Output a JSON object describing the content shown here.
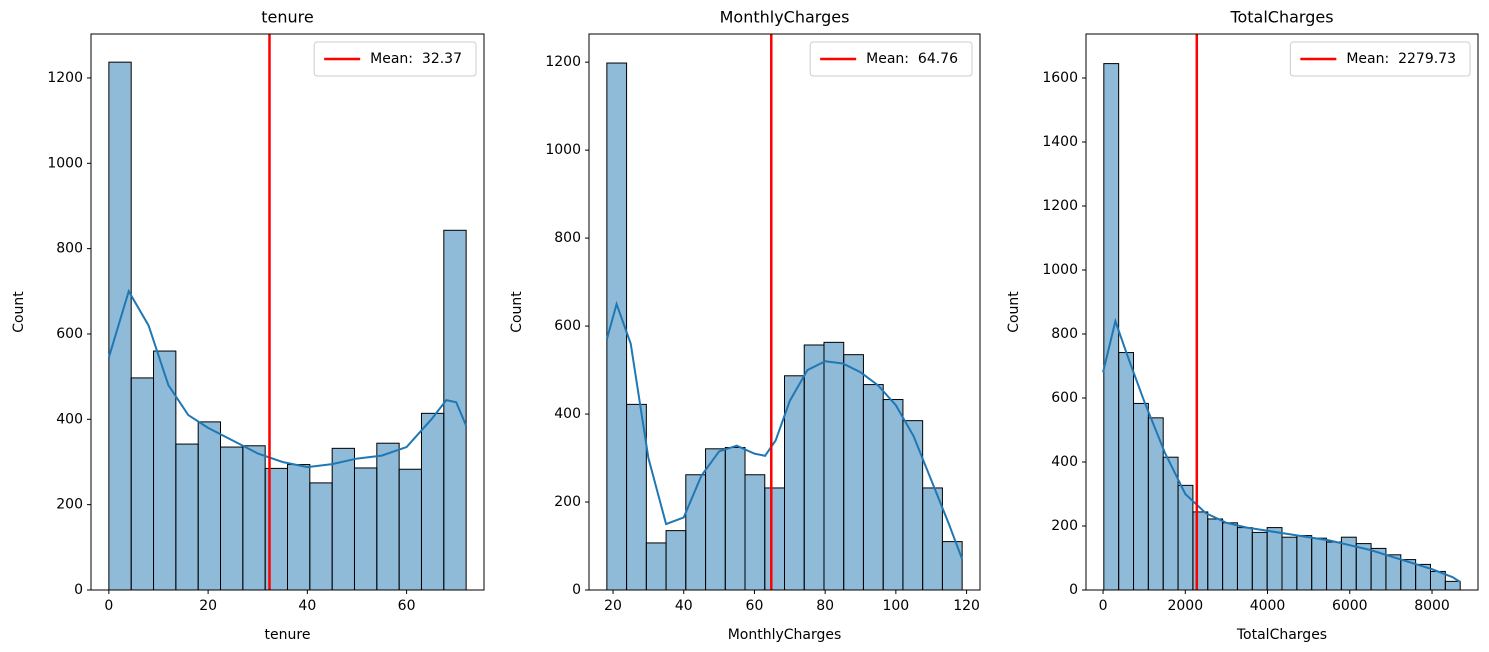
{
  "chart_data": [
    {
      "type": "histogram",
      "title": "tenure",
      "xlabel": "tenure",
      "ylabel": "Count",
      "bins": [
        0,
        4.5,
        9,
        13.5,
        18,
        22.5,
        27,
        31.5,
        36,
        40.5,
        45,
        49.5,
        54,
        58.5,
        63,
        67.5,
        72
      ],
      "values": [
        1237,
        497,
        560,
        342,
        394,
        335,
        338,
        285,
        294,
        251,
        332,
        286,
        344,
        283,
        414,
        843
      ],
      "color": "#1f77b4",
      "kde_x": [
        0,
        4,
        8,
        12,
        16,
        20,
        25,
        30,
        35,
        40,
        45,
        50,
        55,
        60,
        65,
        68,
        70,
        72
      ],
      "kde_y": [
        545,
        700,
        620,
        480,
        410,
        380,
        350,
        320,
        300,
        288,
        295,
        308,
        315,
        335,
        400,
        445,
        440,
        385
      ],
      "mean_line": {
        "name": "Mean:  32.37",
        "value": 32.37,
        "color": "#ff0000"
      },
      "legend": "upper right",
      "xlim": [
        -3.6,
        75.6
      ],
      "ylim": [
        0,
        1303
      ],
      "xticks": [
        0,
        20,
        40,
        60
      ],
      "yticks": [
        0,
        200,
        400,
        600,
        800,
        1000,
        1200
      ]
    },
    {
      "type": "histogram",
      "title": "MonthlyCharges",
      "xlabel": "MonthlyCharges",
      "ylabel": "Count",
      "bins": [
        18.25,
        23.83,
        29.42,
        35,
        40.58,
        46.17,
        51.75,
        57.33,
        62.92,
        68.5,
        74.08,
        79.67,
        85.25,
        90.83,
        96.42,
        102,
        107.58,
        113.17,
        118.75
      ],
      "values": [
        1198,
        422,
        107,
        135,
        262,
        321,
        324,
        262,
        232,
        487,
        557,
        563,
        535,
        467,
        433,
        385,
        232,
        110
      ],
      "color": "#1f77b4",
      "kde_x": [
        18.25,
        21,
        25,
        30,
        35,
        40,
        45,
        50,
        55,
        60,
        63,
        66,
        70,
        75,
        80,
        85,
        90,
        95,
        100,
        105,
        110,
        115,
        118.75
      ],
      "kde_y": [
        570,
        650,
        560,
        300,
        150,
        165,
        260,
        315,
        328,
        310,
        305,
        340,
        430,
        500,
        520,
        515,
        495,
        465,
        420,
        350,
        250,
        150,
        70
      ],
      "mean_line": {
        "name": "Mean:  64.76",
        "value": 64.76,
        "color": "#ff0000"
      },
      "legend": "upper right",
      "xlim": [
        13.2,
        123.8
      ],
      "ylim": [
        0,
        1264
      ],
      "xticks": [
        20,
        40,
        60,
        80,
        100,
        120
      ],
      "yticks": [
        0,
        200,
        400,
        600,
        800,
        1000,
        1200
      ]
    },
    {
      "type": "histogram",
      "title": "TotalCharges",
      "xlabel": "TotalCharges",
      "ylabel": "Count",
      "bins": [
        18.8,
        379.9,
        741,
        1102,
        1463.1,
        1824.2,
        2185.3,
        2546.4,
        2907.5,
        3268.6,
        3629.6,
        3990.7,
        4351.8,
        4712.9,
        5074,
        5435.1,
        5796.1,
        6157.2,
        6518.3,
        6879.4,
        7240.5,
        7601.6,
        7962.7,
        8323.7,
        8684.8
      ],
      "values": [
        1645,
        742,
        583,
        538,
        415,
        327,
        244,
        222,
        210,
        195,
        180,
        195,
        165,
        170,
        162,
        150,
        165,
        145,
        130,
        110,
        95,
        80,
        58,
        27
      ],
      "color": "#1f77b4",
      "kde_x": [
        0,
        300,
        600,
        1000,
        1500,
        2000,
        2500,
        3000,
        3500,
        4000,
        4500,
        5000,
        5500,
        6000,
        6500,
        7000,
        7500,
        8000,
        8500,
        8684.8
      ],
      "kde_y": [
        680,
        840,
        730,
        590,
        430,
        300,
        240,
        210,
        195,
        185,
        175,
        165,
        155,
        140,
        125,
        105,
        85,
        65,
        40,
        25
      ],
      "mean_line": {
        "name": "Mean:  2279.73",
        "value": 2279.73,
        "color": "#ff0000"
      },
      "legend": "upper right",
      "xlim": [
        -414.5,
        9118.1
      ],
      "ylim": [
        0,
        1737.5
      ],
      "xticks": [
        0,
        2000,
        4000,
        6000,
        8000
      ],
      "yticks": [
        0,
        200,
        400,
        600,
        800,
        1000,
        1200,
        1400,
        1600
      ]
    }
  ]
}
